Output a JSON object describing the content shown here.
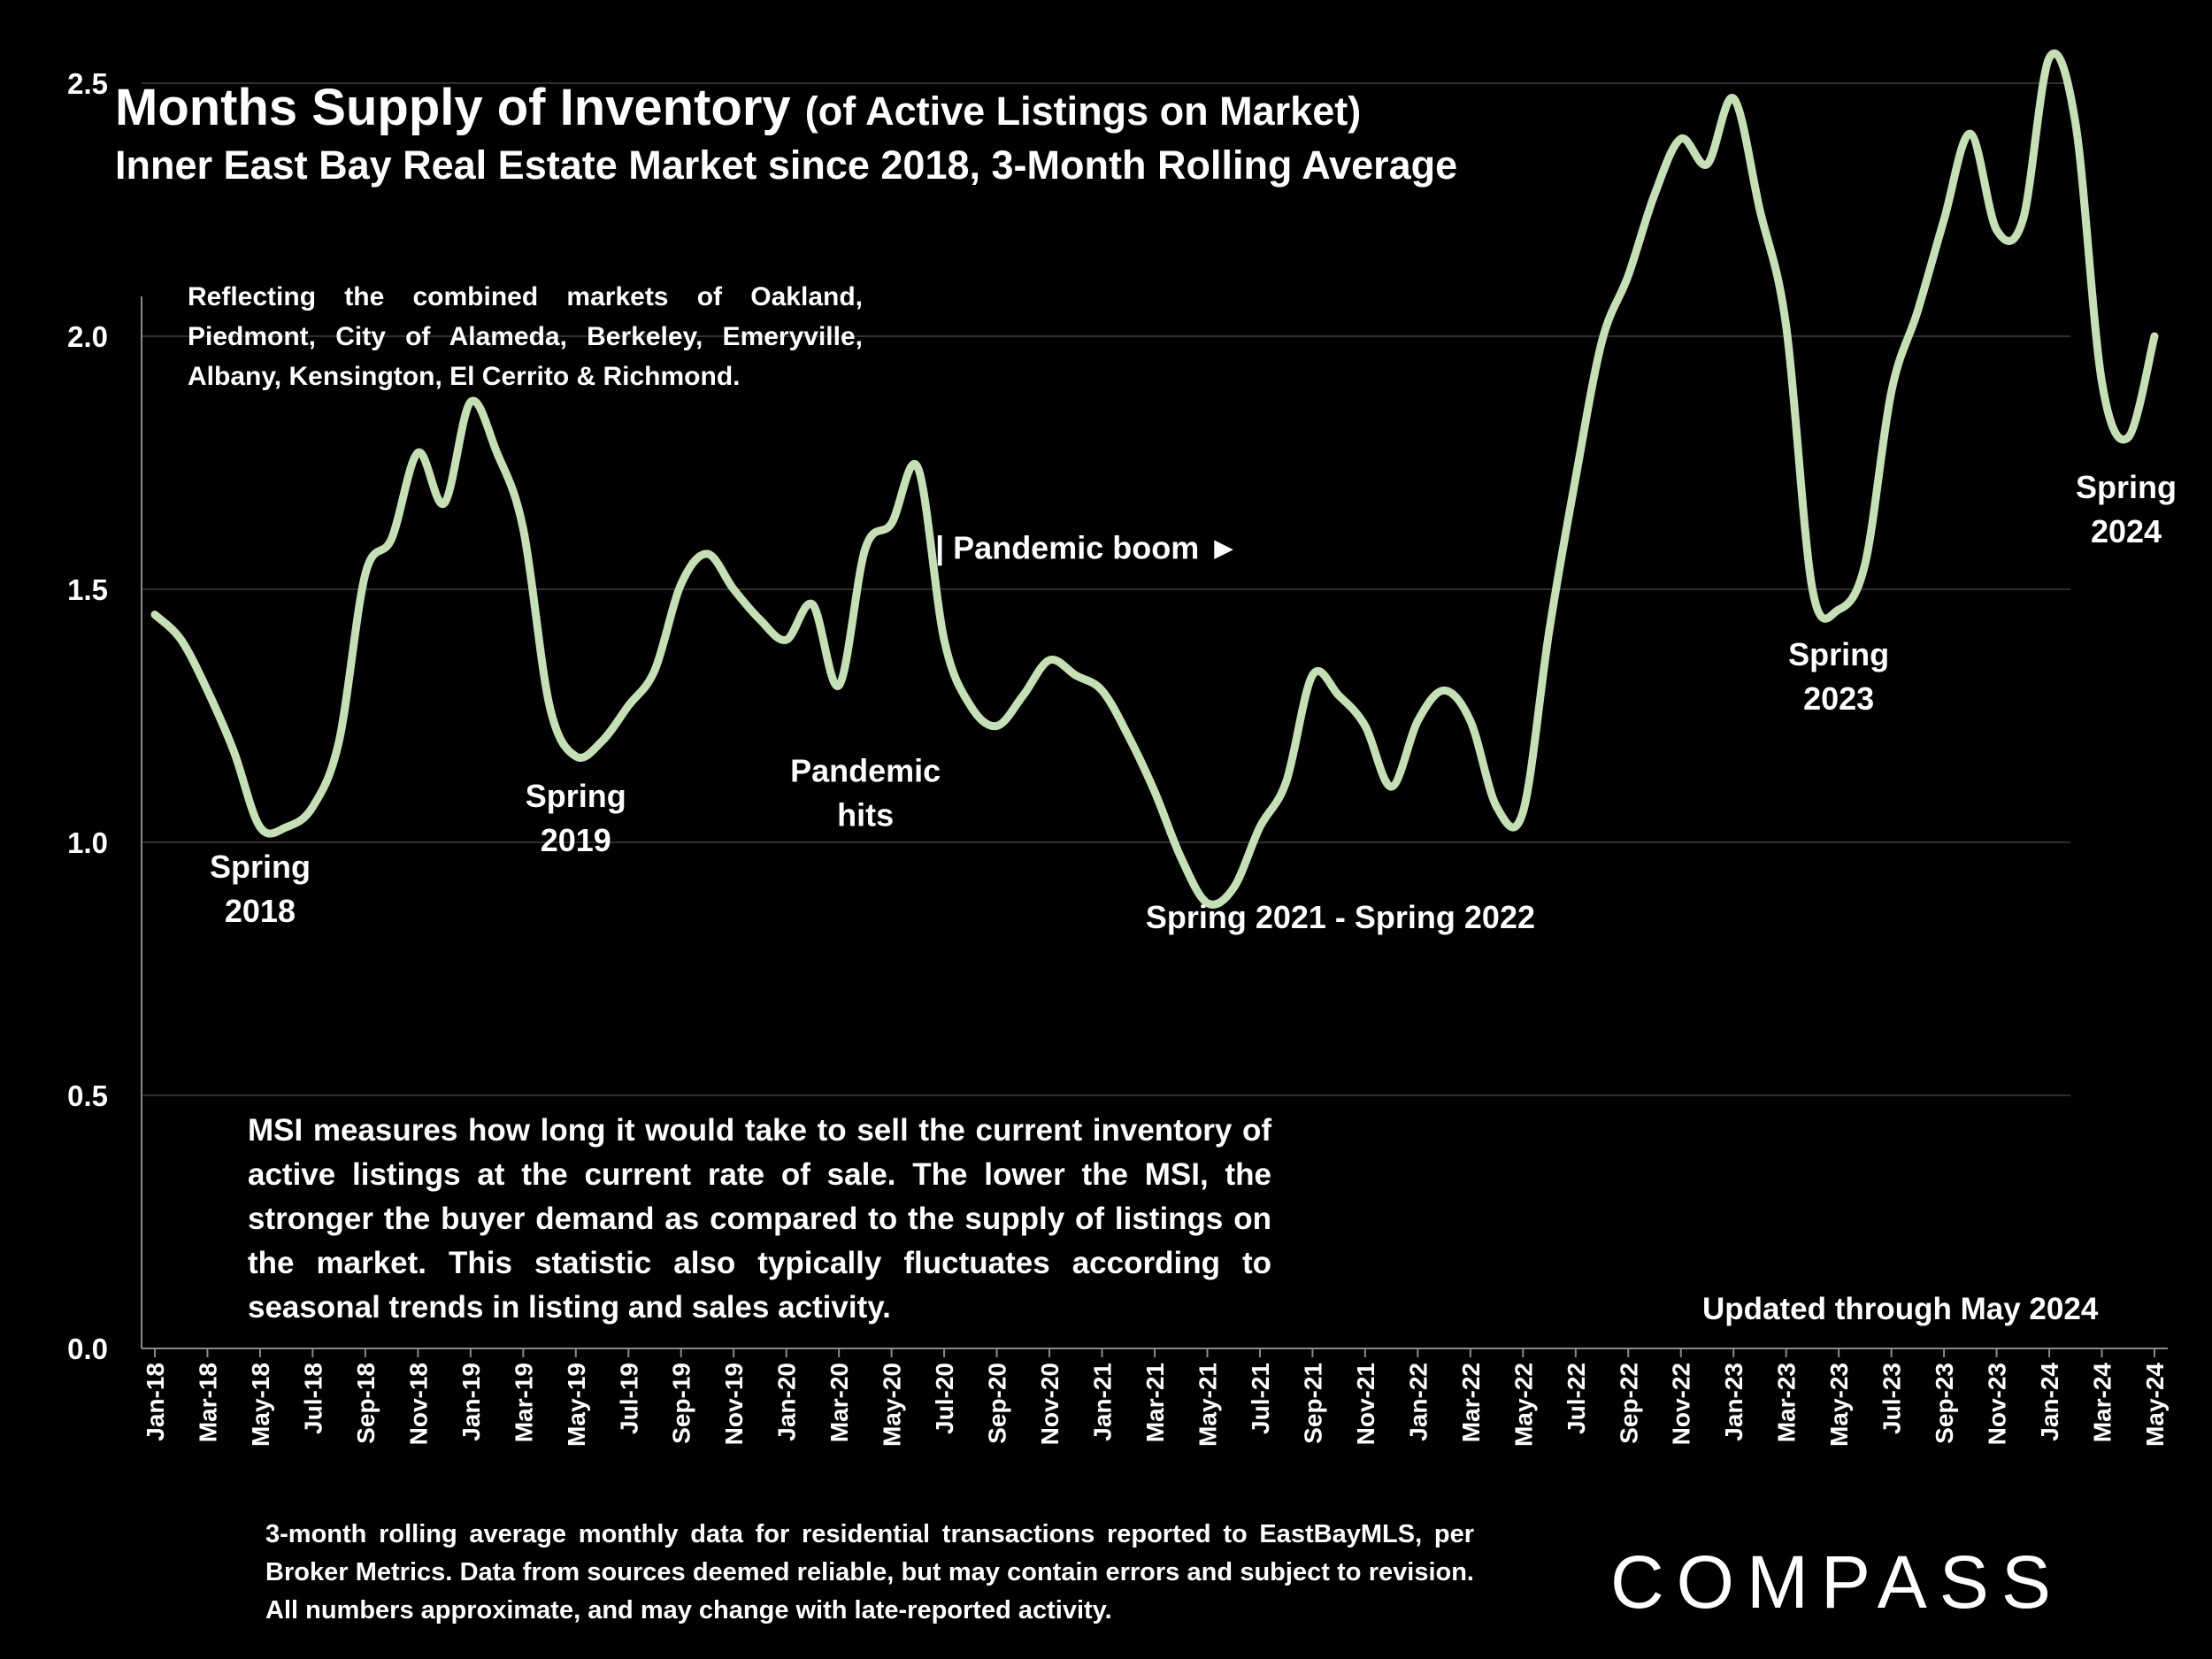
{
  "header": {
    "title": "Months Supply of Inventory",
    "title_suffix": "(of Active Listings on Market)",
    "subtitle": "Inner East Bay Real Estate Market since 2018, 3-Month Rolling Average"
  },
  "notes": {
    "reflecting": "Reflecting the combined markets of Oakland, Piedmont, City of Alameda, Berkeley, Emeryville, Albany, Kensington, El Cerrito & Richmond.",
    "msi": "MSI measures how long it would take to sell the current inventory of active listings at the current rate of sale. The lower the MSI, the stronger the buyer demand as compared to the supply of listings on the market. This statistic also typically fluctuates according to seasonal trends in listing and sales activity.",
    "updated": "Updated through May 2024",
    "footnote": "3-month rolling average monthly data for residential transactions reported to EastBayMLS, per Broker Metrics. Data from sources deemed reliable, but may contain errors and subject to revision. All numbers approximate, and may change with late-reported activity."
  },
  "logo": {
    "text": "COMPASS"
  },
  "chart_data": {
    "type": "line",
    "title": "Months Supply of Inventory",
    "ylim": [
      0,
      2.6
    ],
    "yticks": [
      "0.0",
      "0.5",
      "1.0",
      "1.5",
      "2.0",
      "2.5"
    ],
    "ytick_values": [
      0,
      0.5,
      1.0,
      1.5,
      2.0,
      2.5
    ],
    "grid": true,
    "line_color": "#c5e0b4",
    "xtick_labels": [
      "Jan-18",
      "Mar-18",
      "May-18",
      "Jul-18",
      "Sep-18",
      "Nov-18",
      "Jan-19",
      "Mar-19",
      "May-19",
      "Jul-19",
      "Sep-19",
      "Nov-19",
      "Jan-20",
      "Mar-20",
      "May-20",
      "Jul-20",
      "Sep-20",
      "Nov-20",
      "Jan-21",
      "Mar-21",
      "May-21",
      "Jul-21",
      "Sep-21",
      "Nov-21",
      "Jan-22",
      "Mar-22",
      "May-22",
      "Jul-22",
      "Sep-22",
      "Nov-22",
      "Jan-23",
      "Mar-23",
      "May-23",
      "Jul-23",
      "Sep-23",
      "Nov-23",
      "Jan-24",
      "Mar-24",
      "May-24"
    ],
    "x": [
      "Jan-18",
      "Feb-18",
      "Mar-18",
      "Apr-18",
      "May-18",
      "Jun-18",
      "Jul-18",
      "Aug-18",
      "Sep-18",
      "Oct-18",
      "Nov-18",
      "Dec-18",
      "Jan-19",
      "Feb-19",
      "Mar-19",
      "Apr-19",
      "May-19",
      "Jun-19",
      "Jul-19",
      "Aug-19",
      "Sep-19",
      "Oct-19",
      "Nov-19",
      "Dec-19",
      "Jan-20",
      "Feb-20",
      "Mar-20",
      "Apr-20",
      "May-20",
      "Jun-20",
      "Jul-20",
      "Aug-20",
      "Sep-20",
      "Oct-20",
      "Nov-20",
      "Dec-20",
      "Jan-21",
      "Feb-21",
      "Mar-21",
      "Apr-21",
      "May-21",
      "Jun-21",
      "Jul-21",
      "Aug-21",
      "Sep-21",
      "Oct-21",
      "Nov-21",
      "Dec-21",
      "Jan-22",
      "Feb-22",
      "Mar-22",
      "Apr-22",
      "May-22",
      "Jun-22",
      "Jul-22",
      "Aug-22",
      "Sep-22",
      "Oct-22",
      "Nov-22",
      "Dec-22",
      "Jan-23",
      "Feb-23",
      "Mar-23",
      "Apr-23",
      "May-23",
      "Jun-23",
      "Jul-23",
      "Aug-23",
      "Sep-23",
      "Oct-23",
      "Nov-23",
      "Dec-23",
      "Jan-24",
      "Feb-24",
      "Mar-24",
      "Apr-24",
      "May-24"
    ],
    "series": [
      {
        "values": [
          1.45,
          1.4,
          1.3,
          1.18,
          1.03,
          1.03,
          1.07,
          1.2,
          1.53,
          1.6,
          1.77,
          1.67,
          1.87,
          1.77,
          1.62,
          1.27,
          1.17,
          1.2,
          1.27,
          1.34,
          1.51,
          1.57,
          1.5,
          1.44,
          1.4,
          1.47,
          1.31,
          1.58,
          1.63,
          1.74,
          1.4,
          1.27,
          1.23,
          1.29,
          1.36,
          1.33,
          1.3,
          1.21,
          1.1,
          0.97,
          0.88,
          0.91,
          1.03,
          1.12,
          1.33,
          1.29,
          1.23,
          1.11,
          1.24,
          1.3,
          1.24,
          1.07,
          1.06,
          1.42,
          1.72,
          1.99,
          2.12,
          2.28,
          2.39,
          2.34,
          2.47,
          2.25,
          2.02,
          1.5,
          1.46,
          1.55,
          1.89,
          2.05,
          2.23,
          2.4,
          2.21,
          2.23,
          2.55,
          2.42,
          1.91,
          1.8,
          2.0
        ]
      }
    ],
    "annotations": [
      {
        "lines": [
          "Spring",
          "2018"
        ],
        "x": "May-18",
        "y": 0.93
      },
      {
        "lines": [
          "Spring",
          "2019"
        ],
        "x": "May-19",
        "y": 1.07
      },
      {
        "lines": [
          "Pandemic",
          "hits"
        ],
        "x": "Mar-20",
        "y": 1.12
      },
      {
        "lines": [
          "| Pandemic boom ►"
        ],
        "x": "Jul-20",
        "y": 1.56
      },
      {
        "lines": [
          "Spring 2021 - Spring 2022"
        ],
        "x": "Jan-22",
        "y": 0.83
      },
      {
        "lines": [
          "Spring",
          "2023"
        ],
        "x": "May-23",
        "y": 1.35
      },
      {
        "lines": [
          "Spring",
          "2024"
        ],
        "x": "May-24",
        "y": 1.68
      }
    ]
  }
}
